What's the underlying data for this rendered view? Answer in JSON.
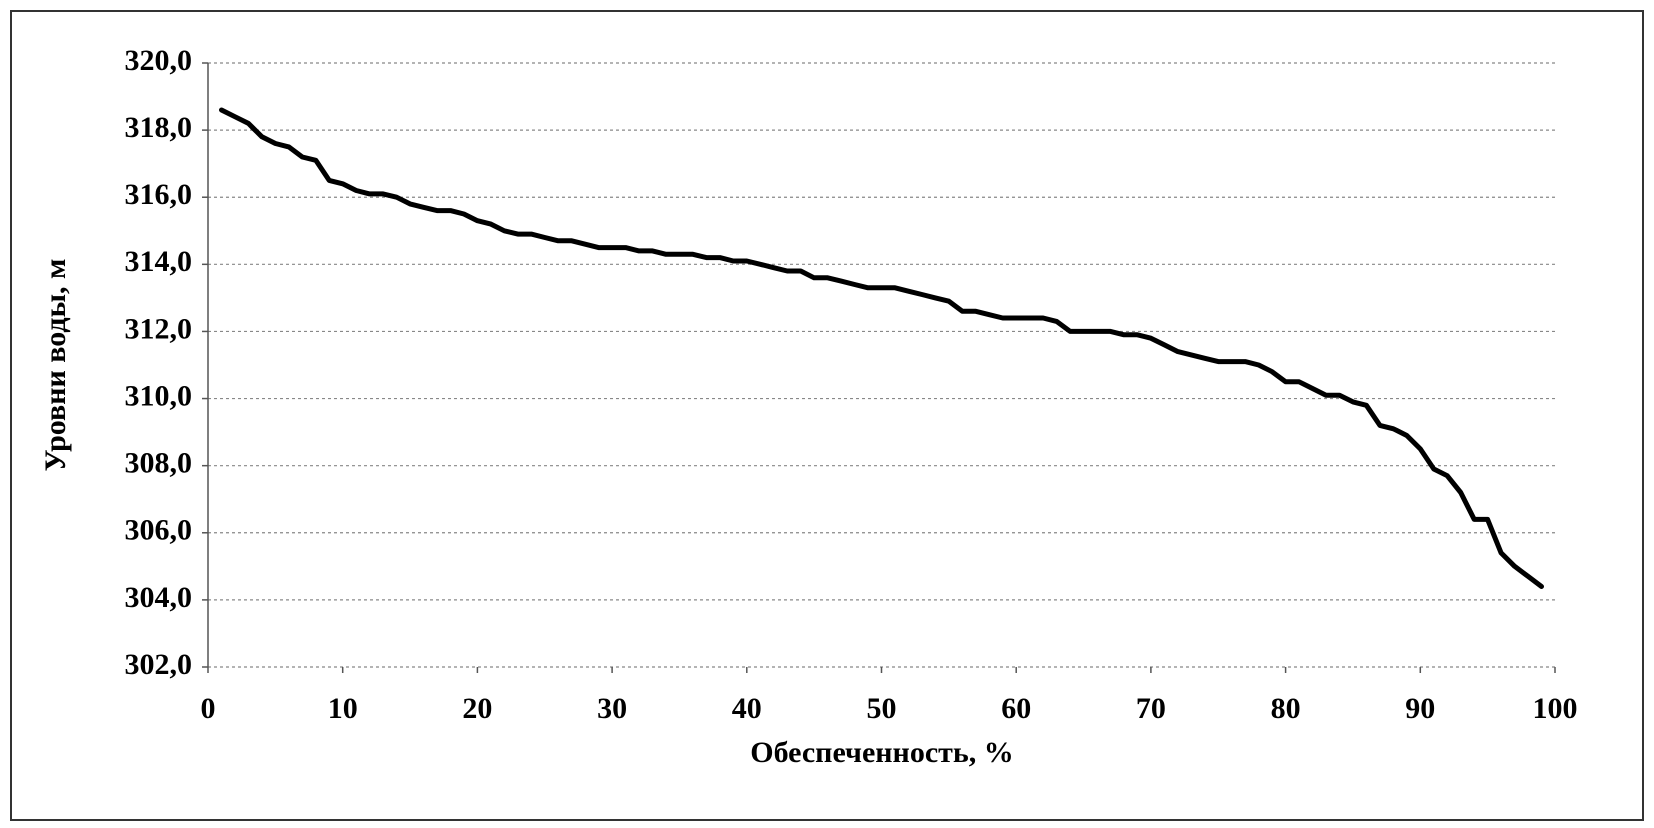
{
  "chart_data": {
    "type": "line",
    "xlabel": "Обеспеченность, %",
    "ylabel": "Уровни воды, м",
    "xlim": [
      0,
      100
    ],
    "xticks": [
      0,
      10,
      20,
      30,
      40,
      50,
      60,
      70,
      80,
      90,
      100
    ],
    "ylim": [
      302,
      320
    ],
    "yticks": [
      {
        "value": 302,
        "label": "302,0"
      },
      {
        "value": 304,
        "label": "304,0"
      },
      {
        "value": 306,
        "label": "306,0"
      },
      {
        "value": 308,
        "label": "308,0"
      },
      {
        "value": 310,
        "label": "310,0"
      },
      {
        "value": 312,
        "label": "312,0"
      },
      {
        "value": 314,
        "label": "314,0"
      },
      {
        "value": 316,
        "label": "316,0"
      },
      {
        "value": 318,
        "label": "318,0"
      },
      {
        "value": 320,
        "label": "320,0"
      }
    ],
    "grid": true,
    "x": [
      1,
      2,
      3,
      4,
      5,
      6,
      7,
      8,
      9,
      10,
      11,
      12,
      13,
      14,
      15,
      16,
      17,
      18,
      19,
      20,
      21,
      22,
      23,
      24,
      25,
      26,
      27,
      28,
      29,
      30,
      31,
      32,
      33,
      34,
      35,
      36,
      37,
      38,
      39,
      40,
      41,
      42,
      43,
      44,
      45,
      46,
      47,
      48,
      49,
      50,
      51,
      52,
      53,
      54,
      55,
      56,
      57,
      58,
      59,
      60,
      61,
      62,
      63,
      64,
      65,
      66,
      67,
      68,
      69,
      70,
      71,
      72,
      73,
      74,
      75,
      76,
      77,
      78,
      79,
      80,
      81,
      82,
      83,
      84,
      85,
      86,
      87,
      88,
      89,
      90,
      91,
      92,
      93,
      94,
      95,
      96,
      97,
      98,
      99
    ],
    "series": [
      {
        "color": "#000000",
        "values": [
          318.6,
          318.4,
          318.2,
          317.8,
          317.6,
          317.5,
          317.2,
          317.1,
          316.5,
          316.4,
          316.2,
          316.1,
          316.1,
          316.0,
          315.8,
          315.7,
          315.6,
          315.6,
          315.5,
          315.3,
          315.2,
          315.0,
          314.9,
          314.9,
          314.8,
          314.7,
          314.7,
          314.6,
          314.5,
          314.5,
          314.5,
          314.4,
          314.4,
          314.3,
          314.3,
          314.3,
          314.2,
          314.2,
          314.1,
          314.1,
          314.0,
          313.9,
          313.8,
          313.8,
          313.6,
          313.6,
          313.5,
          313.4,
          313.3,
          313.3,
          313.3,
          313.2,
          313.1,
          313.0,
          312.9,
          312.6,
          312.6,
          312.5,
          312.4,
          312.4,
          312.4,
          312.4,
          312.3,
          312.0,
          312.0,
          312.0,
          312.0,
          311.9,
          311.9,
          311.8,
          311.6,
          311.4,
          311.3,
          311.2,
          311.1,
          311.1,
          311.1,
          311.0,
          310.8,
          310.5,
          310.5,
          310.3,
          310.1,
          310.1,
          309.9,
          309.8,
          309.2,
          309.1,
          308.9,
          308.5,
          307.9,
          307.7,
          307.2,
          306.4,
          306.4,
          305.4,
          305.0,
          304.7,
          304.4
        ]
      }
    ]
  }
}
